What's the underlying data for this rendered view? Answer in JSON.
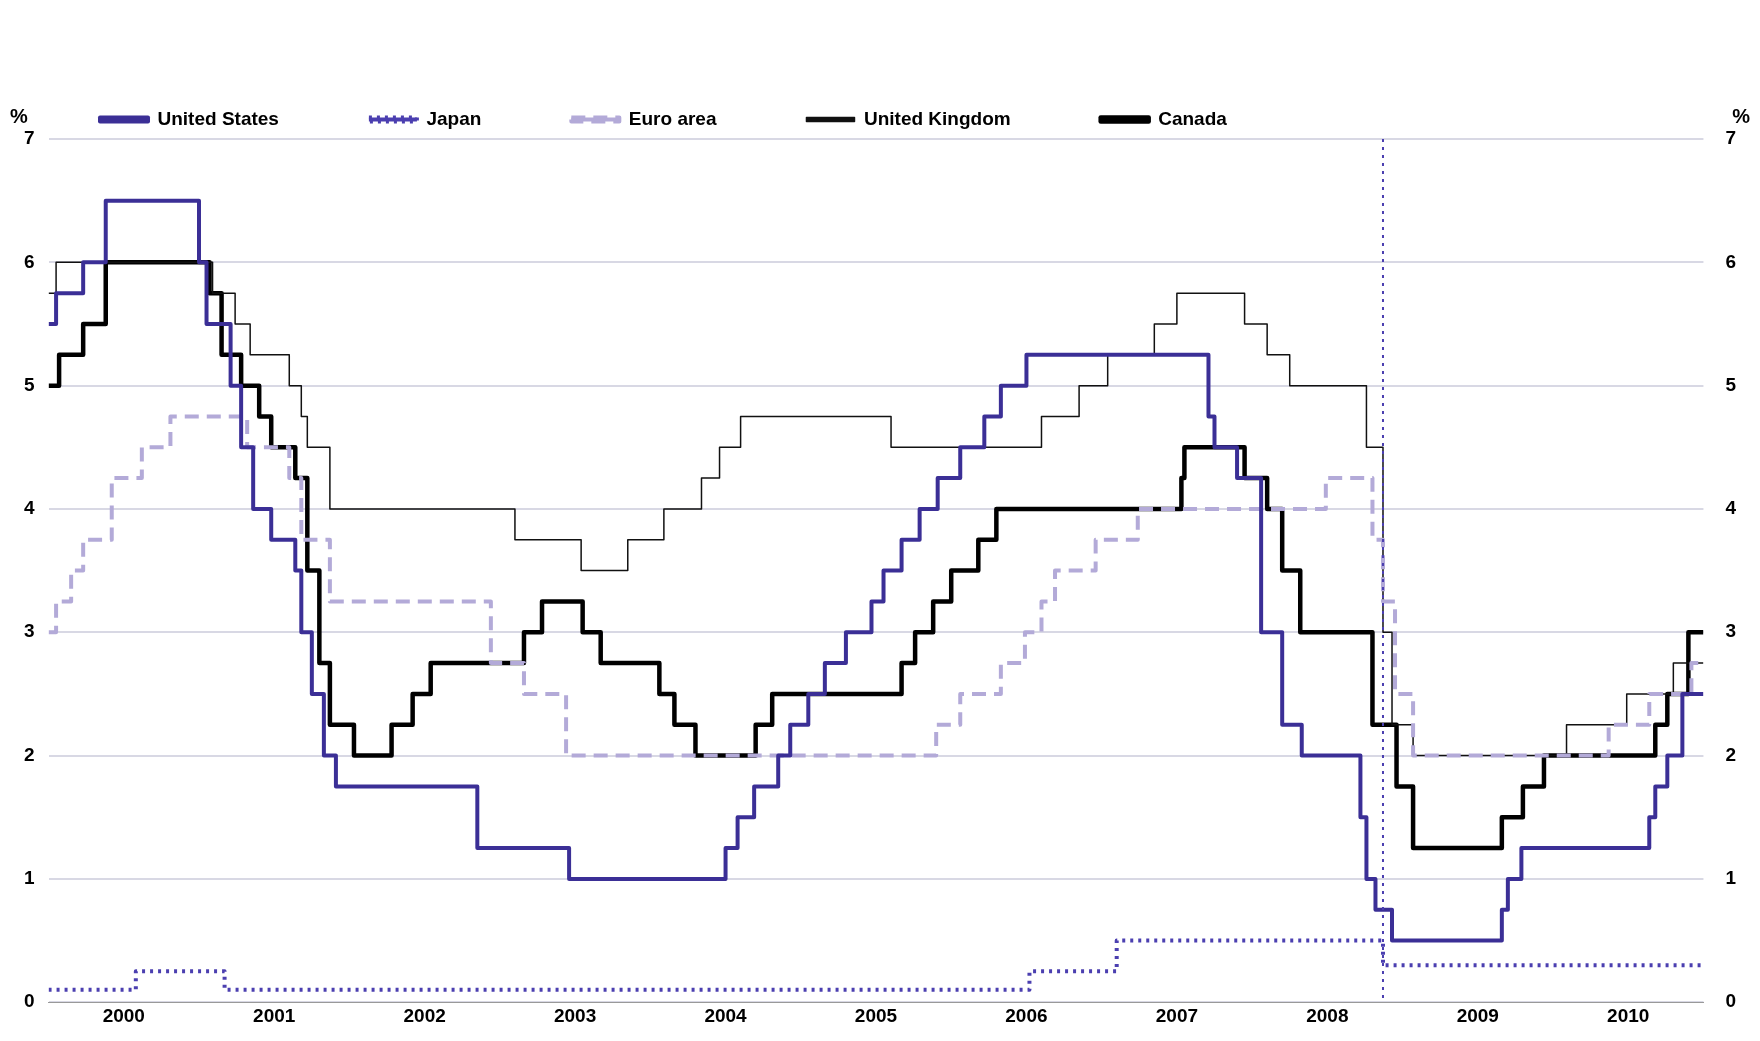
{
  "chart_data": {
    "type": "step",
    "ylabel": "%",
    "y2label": "%",
    "xlim": [
      2000,
      2011
    ],
    "xticks": [
      {
        "value": 2000.5,
        "label": "2000"
      },
      {
        "value": 2001.5,
        "label": "2001"
      },
      {
        "value": 2002.5,
        "label": "2002"
      },
      {
        "value": 2003.5,
        "label": "2003"
      },
      {
        "value": 2004.5,
        "label": "2004"
      },
      {
        "value": 2005.5,
        "label": "2005"
      },
      {
        "value": 2006.5,
        "label": "2006"
      },
      {
        "value": 2007.5,
        "label": "2007"
      },
      {
        "value": 2008.5,
        "label": "2008"
      },
      {
        "value": 2009.5,
        "label": "2009"
      },
      {
        "value": 2010.5,
        "label": "2010"
      }
    ],
    "ylim": [
      0,
      7
    ],
    "yticks": [
      0,
      1,
      2,
      3,
      4,
      5,
      6,
      7
    ],
    "y2lim": [
      0,
      7
    ],
    "y2ticks": [
      0,
      1,
      2,
      3,
      4,
      5,
      6,
      7
    ],
    "grid": "y",
    "legend": "top",
    "marker": "none",
    "ref_lines": [
      {
        "axis": "x",
        "value": 2008.87,
        "color": "#4b3fb0",
        "line_style": "dotted"
      }
    ],
    "series": [
      {
        "name": "United States",
        "color": "#3b2f96",
        "line_style": "solid",
        "x": [
          2000,
          2000.05,
          2000.23,
          2000.38,
          2001.0,
          2001.05,
          2001.21,
          2001.28,
          2001.36,
          2001.48,
          2001.64,
          2001.68,
          2001.75,
          2001.83,
          2001.91,
          2002.85,
          2003.46,
          2004.5,
          2004.58,
          2004.69,
          2004.85,
          2004.93,
          2005.05,
          2005.16,
          2005.3,
          2005.47,
          2005.55,
          2005.67,
          2005.79,
          2005.91,
          2006.06,
          2006.22,
          2006.33,
          2006.5,
          2007.71,
          2007.75,
          2007.9,
          2008.06,
          2008.2,
          2008.33,
          2008.72,
          2008.76,
          2008.82,
          2008.93,
          2009.66,
          2009.7,
          2009.79,
          2010.64,
          2010.68,
          2010.76,
          2010.86,
          2011.0
        ],
        "values": [
          5.5,
          5.75,
          6,
          6.5,
          6,
          5.5,
          5,
          4.5,
          4,
          3.75,
          3.5,
          3,
          2.5,
          2,
          1.75,
          1.25,
          1.0,
          1.25,
          1.5,
          1.75,
          2.0,
          2.25,
          2.5,
          2.75,
          3.0,
          3.25,
          3.5,
          3.75,
          4.0,
          4.25,
          4.5,
          4.75,
          5.0,
          5.25,
          4.75,
          4.5,
          4.25,
          3.0,
          2.25,
          2.0,
          1.5,
          1.0,
          0.75,
          0.5,
          0.75,
          1.0,
          1.25,
          1.5,
          1.75,
          2.0,
          2.5,
          2.5
        ]
      },
      {
        "name": "Japan",
        "color": "#4b3fb0",
        "line_style": "dotted",
        "x": [
          2000,
          2000.58,
          2001.17,
          2006.52,
          2007.1,
          2008.87,
          2011
        ],
        "values": [
          0.1,
          0.25,
          0.1,
          0.25,
          0.5,
          0.3,
          0.3
        ]
      },
      {
        "name": "Euro area",
        "color": "#b3aad8",
        "line_style": "dashed",
        "x": [
          2000,
          2000.05,
          2000.15,
          2000.23,
          2000.42,
          2000.62,
          2000.81,
          2001.32,
          2001.6,
          2001.68,
          2001.87,
          2002.94,
          2003.16,
          2003.44,
          2005.9,
          2006.06,
          2006.33,
          2006.49,
          2006.6,
          2006.69,
          2006.96,
          2007.24,
          2008.49,
          2008.8,
          2008.87,
          2008.95,
          2009.07,
          2010.37,
          2010.64,
          2010.92,
          2011
        ],
        "values": [
          3.0,
          3.25,
          3.5,
          3.75,
          4.25,
          4.5,
          4.75,
          4.5,
          4.25,
          3.75,
          3.25,
          2.75,
          2.5,
          2.0,
          2.25,
          2.5,
          2.75,
          3.0,
          3.25,
          3.5,
          3.75,
          4.0,
          4.25,
          3.75,
          3.25,
          2.5,
          2.0,
          2.25,
          2.5,
          2.75,
          2.75
        ]
      },
      {
        "name": "United Kingdom",
        "color": "#111111",
        "line_style": "solid",
        "x": [
          2000,
          2000.05,
          2001.09,
          2001.24,
          2001.34,
          2001.6,
          2001.68,
          2001.72,
          2001.87,
          2003.1,
          2003.54,
          2003.85,
          2004.09,
          2004.34,
          2004.46,
          2004.6,
          2005.6,
          2006.6,
          2006.85,
          2007.04,
          2007.35,
          2007.5,
          2007.95,
          2008.1,
          2008.25,
          2008.76,
          2008.87,
          2008.93,
          2009.07,
          2010.09,
          2010.49,
          2010.8,
          2011
        ],
        "values": [
          5.75,
          6.0,
          5.75,
          5.5,
          5.25,
          5.0,
          4.75,
          4.5,
          4.0,
          3.75,
          3.5,
          3.75,
          4.0,
          4.25,
          4.5,
          4.75,
          4.5,
          4.75,
          5.0,
          5.25,
          5.5,
          5.75,
          5.5,
          5.25,
          5.0,
          4.5,
          3.0,
          2.25,
          2.0,
          2.25,
          2.5,
          2.75,
          2.75
        ]
      },
      {
        "name": "Canada",
        "color": "#000000",
        "line_style": "solid",
        "x": [
          2000,
          2000.07,
          2000.23,
          2000.38,
          2001.07,
          2001.15,
          2001.28,
          2001.4,
          2001.48,
          2001.64,
          2001.72,
          2001.8,
          2001.87,
          2002.03,
          2002.28,
          2002.42,
          2002.54,
          2003.16,
          2003.28,
          2003.55,
          2003.67,
          2004.06,
          2004.16,
          2004.3,
          2004.7,
          2004.81,
          2005.67,
          2005.76,
          2005.88,
          2006.0,
          2006.18,
          2006.3,
          2007.53,
          2007.55,
          2007.95,
          2008.1,
          2008.2,
          2008.32,
          2008.8,
          2008.96,
          2009.07,
          2009.66,
          2009.8,
          2009.94,
          2010.68,
          2010.76,
          2010.9,
          2011
        ],
        "values": [
          5.0,
          5.25,
          5.5,
          6.0,
          5.75,
          5.25,
          5.0,
          4.75,
          4.5,
          4.25,
          3.5,
          2.75,
          2.25,
          2.0,
          2.25,
          2.5,
          2.75,
          3.0,
          3.25,
          3.0,
          2.75,
          2.5,
          2.25,
          2.0,
          2.25,
          2.5,
          2.75,
          3.0,
          3.25,
          3.5,
          3.75,
          4.0,
          4.25,
          4.5,
          4.25,
          4.0,
          3.5,
          3.0,
          2.25,
          1.75,
          1.25,
          1.5,
          1.75,
          2.0,
          2.25,
          2.5,
          3.0,
          3.0
        ]
      }
    ]
  }
}
